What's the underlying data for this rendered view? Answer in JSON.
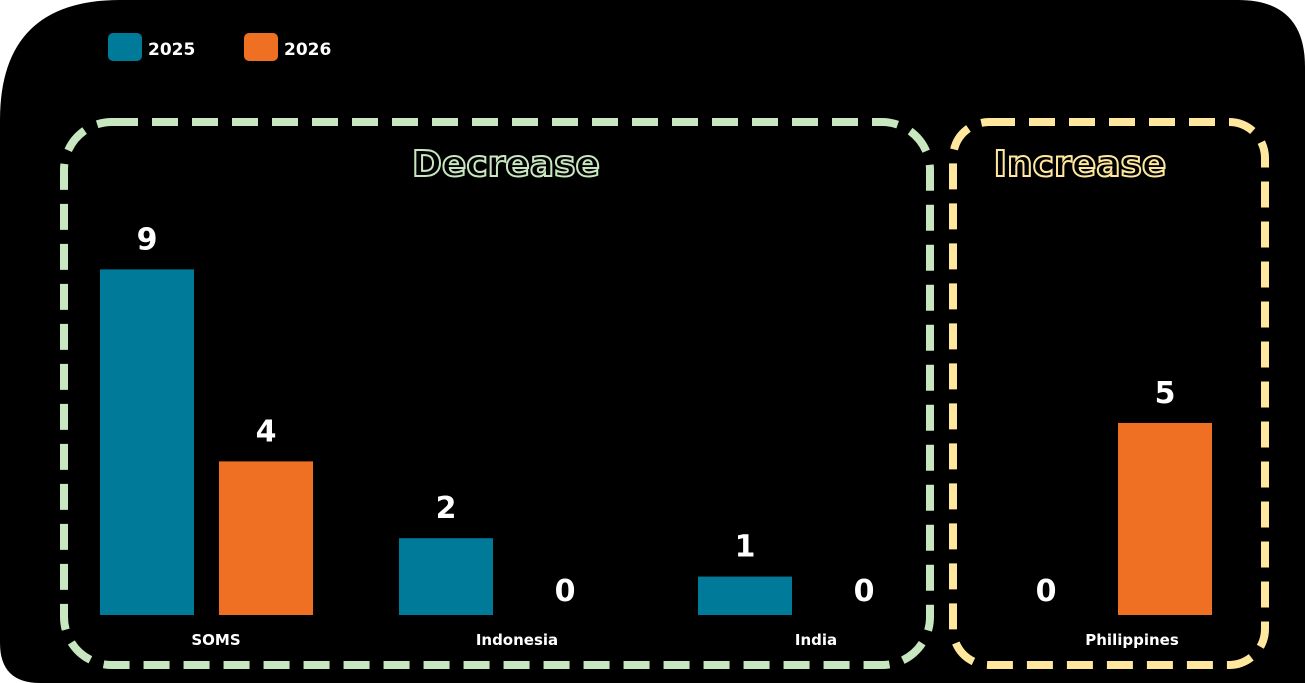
{
  "chart_data": {
    "type": "bar",
    "categories": [
      "SOMS",
      "Indonesia",
      "India",
      "Philippines"
    ],
    "series": [
      {
        "name": "2025",
        "values": [
          9,
          2,
          1,
          0
        ],
        "color": "#007a99"
      },
      {
        "name": "2026",
        "values": [
          4,
          0,
          0,
          5
        ],
        "color": "#f07023"
      }
    ],
    "ylim": [
      0,
      11
    ],
    "legend": "top-left",
    "grid": false,
    "groups": [
      {
        "title": "Decrease",
        "categories": [
          "SOMS",
          "Indonesia",
          "India"
        ],
        "color": "#c8e6c0"
      },
      {
        "title": "Increase",
        "categories": [
          "Philippines"
        ],
        "color": "#ffe89e"
      }
    ],
    "background": "#000000"
  }
}
